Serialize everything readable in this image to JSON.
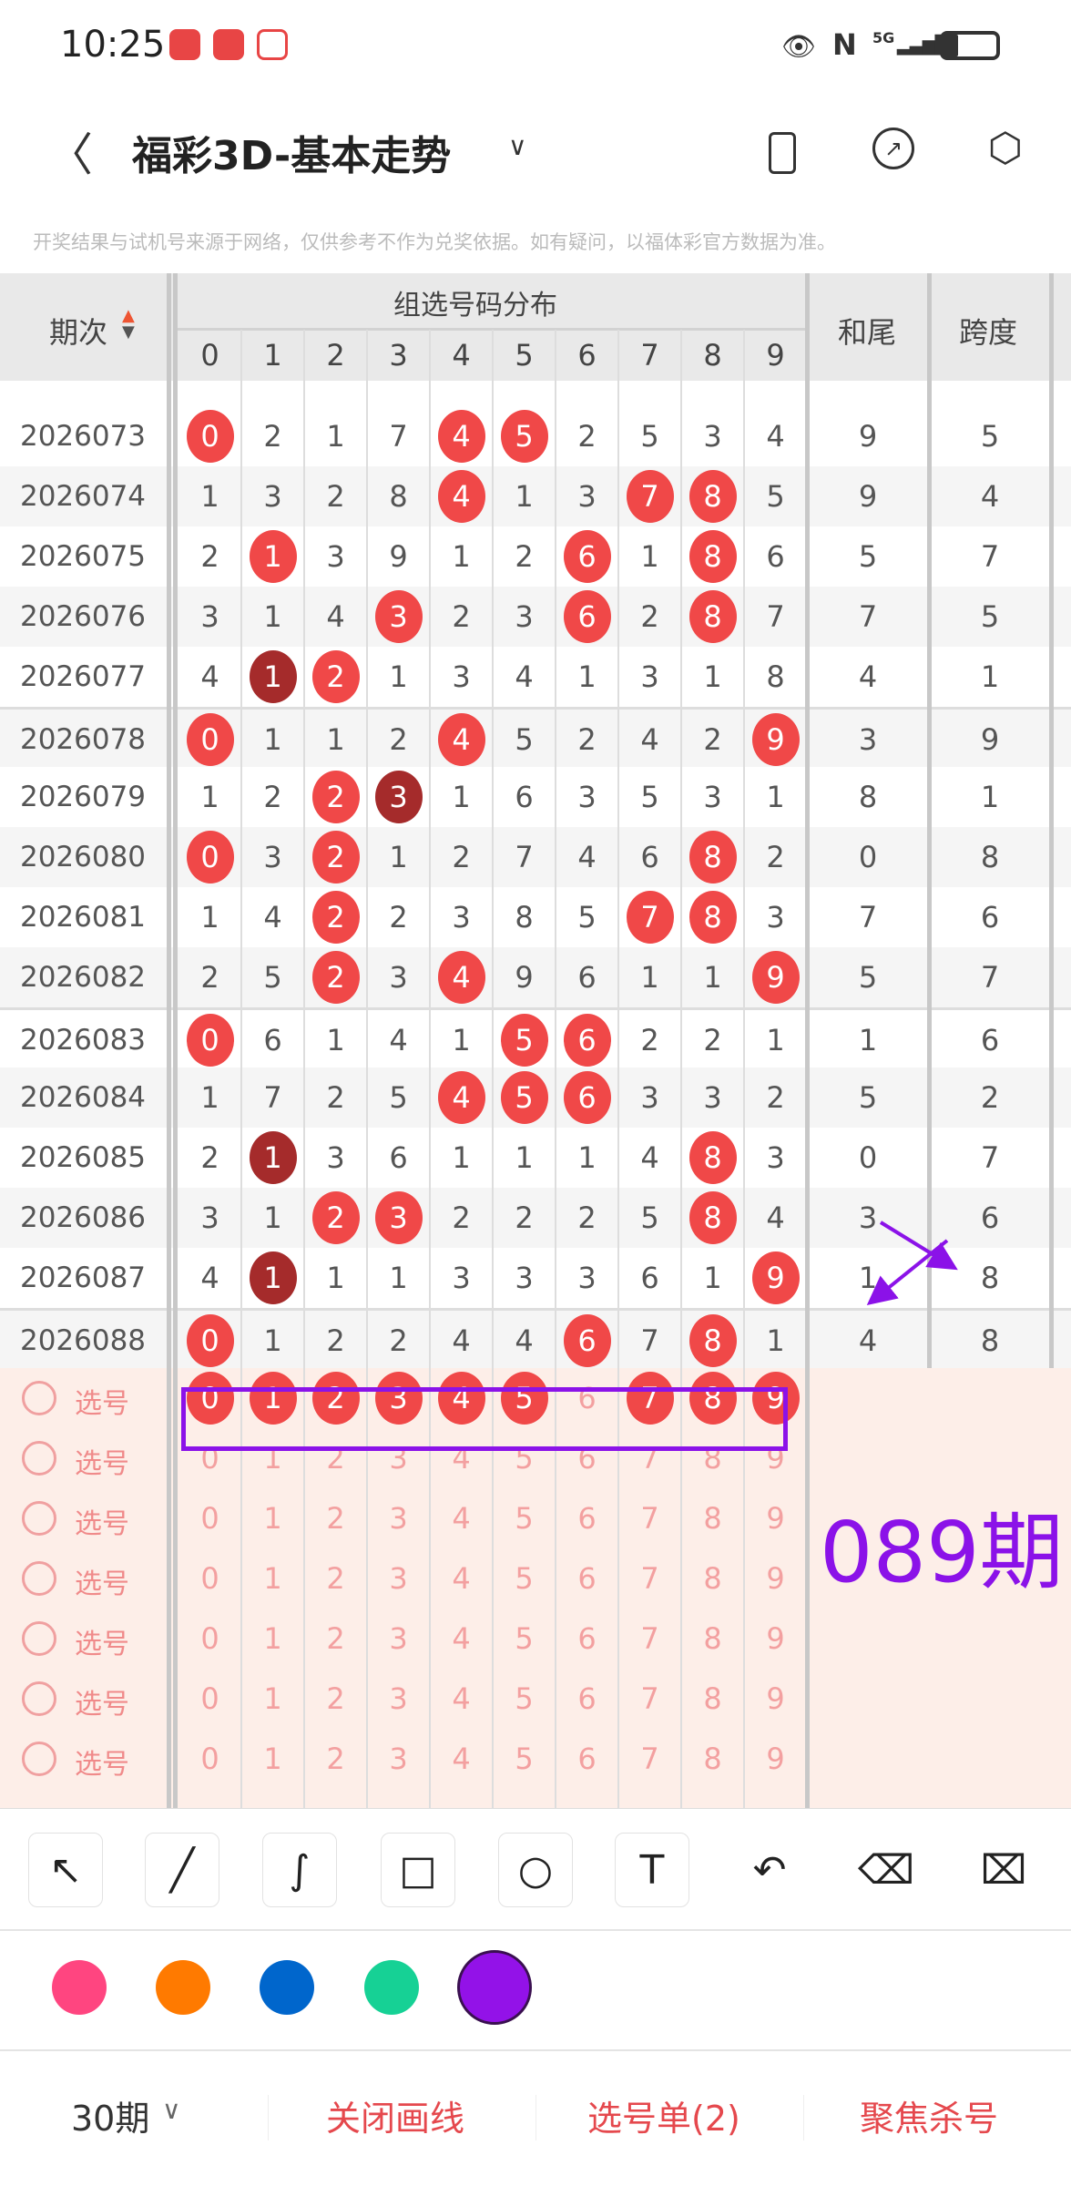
{
  "status_bar": {
    "time": "10:25",
    "network": "5G"
  },
  "header": {
    "title": "福彩3D-基本走势"
  },
  "disclaimer": "开奖结果与试机号来源于网络，仅供参考不作为兑奖依据。如有疑问，以福体彩官方数据为准。",
  "table": {
    "col_period": "期次",
    "col_group": "组选号码分布",
    "digit_headers": [
      "0",
      "1",
      "2",
      "3",
      "4",
      "5",
      "6",
      "7",
      "8",
      "9"
    ],
    "col_hewei": "和尾",
    "col_kuadu": "跨度",
    "rows": [
      {
        "period": "2026073",
        "nums": [
          0,
          2,
          1,
          7,
          4,
          5,
          2,
          5,
          3,
          4
        ],
        "balls": {
          "0": "red",
          "4": "red",
          "5": "red"
        },
        "hewei": "9",
        "kuadu": "5"
      },
      {
        "period": "2026074",
        "nums": [
          1,
          3,
          2,
          8,
          4,
          1,
          3,
          7,
          8,
          5
        ],
        "balls": {
          "4": "red",
          "7": "red",
          "8": "red"
        },
        "hewei": "9",
        "kuadu": "4"
      },
      {
        "period": "2026075",
        "nums": [
          2,
          1,
          3,
          9,
          1,
          2,
          6,
          1,
          8,
          6
        ],
        "balls": {
          "1": "red",
          "6": "red",
          "8": "red"
        },
        "hewei": "5",
        "kuadu": "7"
      },
      {
        "period": "2026076",
        "nums": [
          3,
          1,
          4,
          3,
          2,
          3,
          6,
          2,
          8,
          7
        ],
        "balls": {
          "3": "red",
          "6": "red",
          "8": "red"
        },
        "hewei": "7",
        "kuadu": "5"
      },
      {
        "period": "2026077",
        "nums": [
          4,
          1,
          2,
          1,
          3,
          4,
          1,
          3,
          1,
          8
        ],
        "balls": {
          "1": "dark",
          "2": "red"
        },
        "hewei": "4",
        "kuadu": "1"
      },
      {
        "period": "2026078",
        "nums": [
          0,
          1,
          1,
          2,
          4,
          5,
          2,
          4,
          2,
          9
        ],
        "balls": {
          "0": "red",
          "4": "red",
          "9": "red"
        },
        "hewei": "3",
        "kuadu": "9"
      },
      {
        "period": "2026079",
        "nums": [
          1,
          2,
          2,
          3,
          1,
          6,
          3,
          5,
          3,
          1
        ],
        "balls": {
          "2": "red",
          "3": "dark"
        },
        "hewei": "8",
        "kuadu": "1"
      },
      {
        "period": "2026080",
        "nums": [
          0,
          3,
          2,
          1,
          2,
          7,
          4,
          6,
          8,
          2
        ],
        "balls": {
          "0": "red",
          "2": "red",
          "8": "red"
        },
        "hewei": "0",
        "kuadu": "8"
      },
      {
        "period": "2026081",
        "nums": [
          1,
          4,
          2,
          2,
          3,
          8,
          5,
          7,
          8,
          3
        ],
        "balls": {
          "2": "red",
          "7": "red",
          "8": "red"
        },
        "hewei": "7",
        "kuadu": "6"
      },
      {
        "period": "2026082",
        "nums": [
          2,
          5,
          2,
          3,
          4,
          9,
          6,
          1,
          1,
          9
        ],
        "balls": {
          "2": "red",
          "4": "red",
          "9": "red"
        },
        "hewei": "5",
        "kuadu": "7"
      },
      {
        "period": "2026083",
        "nums": [
          0,
          6,
          1,
          4,
          1,
          5,
          6,
          2,
          2,
          1
        ],
        "balls": {
          "0": "red",
          "5": "red",
          "6": "red"
        },
        "hewei": "1",
        "kuadu": "6"
      },
      {
        "period": "2026084",
        "nums": [
          1,
          7,
          2,
          5,
          4,
          5,
          6,
          3,
          3,
          2
        ],
        "balls": {
          "4": "red",
          "5": "red",
          "6": "red"
        },
        "hewei": "5",
        "kuadu": "2"
      },
      {
        "period": "2026085",
        "nums": [
          2,
          1,
          3,
          6,
          1,
          1,
          1,
          4,
          8,
          3
        ],
        "balls": {
          "1": "dark",
          "8": "red"
        },
        "hewei": "0",
        "kuadu": "7"
      },
      {
        "period": "2026086",
        "nums": [
          3,
          1,
          2,
          3,
          2,
          2,
          2,
          5,
          8,
          4
        ],
        "balls": {
          "2": "red",
          "3": "red",
          "8": "red"
        },
        "hewei": "3",
        "kuadu": "6"
      },
      {
        "period": "2026087",
        "nums": [
          4,
          1,
          1,
          1,
          3,
          3,
          3,
          6,
          1,
          9
        ],
        "balls": {
          "1": "dark",
          "9": "red"
        },
        "hewei": "1",
        "kuadu": "8"
      },
      {
        "period": "2026088",
        "nums": [
          0,
          1,
          2,
          2,
          4,
          4,
          6,
          7,
          8,
          1
        ],
        "balls": {
          "0": "red",
          "6": "red",
          "8": "red"
        },
        "hewei": "4",
        "kuadu": "8"
      }
    ],
    "picker_label": "选号",
    "picker_rows": [
      {
        "selected": [
          0,
          1,
          2,
          3,
          4,
          5,
          7,
          8,
          9
        ]
      },
      {
        "selected": []
      },
      {
        "selected": []
      },
      {
        "selected": []
      },
      {
        "selected": []
      },
      {
        "selected": []
      },
      {
        "selected": []
      }
    ]
  },
  "annotation": {
    "text": "089期",
    "color": "#8b12e8"
  },
  "colors": {
    "ball_red": "#f04848",
    "ball_dark": "#a52b2b",
    "picker_bg": "#fdeee8",
    "accent": "#e5484d"
  },
  "draw_tools": [
    "arrow",
    "line",
    "freehand",
    "rectangle",
    "circle",
    "text",
    "undo",
    "eraser",
    "clear"
  ],
  "palette": [
    "#ff4580",
    "#ff7a00",
    "#0066cc",
    "#16d195",
    "#9312e8"
  ],
  "palette_selected": 4,
  "bottom_bar": {
    "period_select": "30期",
    "close_draw": "关闭画线",
    "pick_list": "选号单(2)",
    "focus_kill": "聚焦杀号"
  }
}
